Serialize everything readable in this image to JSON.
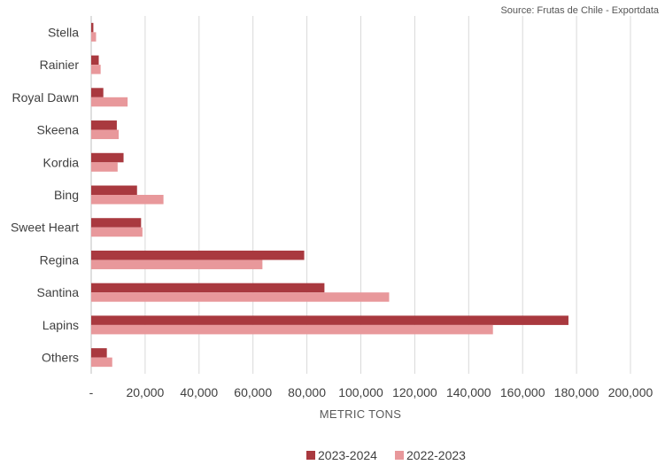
{
  "source": "Source: Frutas de Chile - Exportdata",
  "chart_data": {
    "type": "bar",
    "orientation": "horizontal",
    "categories": [
      "Stella",
      "Rainier",
      "Royal Dawn",
      "Skeena",
      "Kordia",
      "Bing",
      "Sweet Heart",
      "Regina",
      "Santina",
      "Lapins",
      "Others"
    ],
    "series": [
      {
        "name": "2023-2024",
        "color": "#a9393f",
        "values": [
          800,
          2800,
          4500,
          9500,
          12000,
          17000,
          18500,
          79000,
          86500,
          177000,
          5800
        ]
      },
      {
        "name": "2022-2023",
        "color": "#e8989b",
        "values": [
          1800,
          3500,
          13500,
          10200,
          9800,
          26800,
          19000,
          63500,
          110500,
          149000,
          7800
        ]
      }
    ],
    "xlabel": "METRIC TONS",
    "ylabel": "",
    "xlim": [
      0,
      200000
    ],
    "xticks": [
      0,
      20000,
      40000,
      60000,
      80000,
      100000,
      120000,
      140000,
      160000,
      180000,
      200000
    ],
    "xtick_labels": [
      "-",
      "20,000",
      "40,000",
      "60,000",
      "80,000",
      "100,000",
      "120,000",
      "140,000",
      "160,000",
      "180,000",
      "200,000"
    ],
    "grid": "vertical",
    "legend": "bottom"
  }
}
